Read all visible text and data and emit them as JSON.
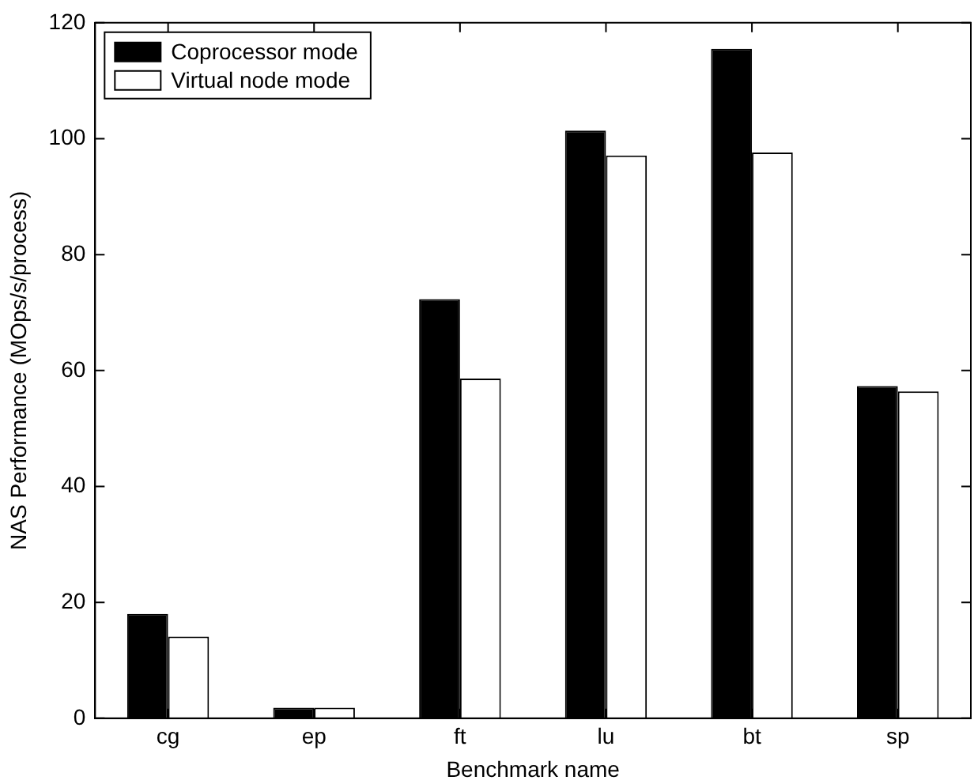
{
  "chart_data": {
    "type": "bar",
    "xlabel": "Benchmark name",
    "ylabel": "NAS Performance (MOps/s/process)",
    "categories": [
      "cg",
      "ep",
      "ft",
      "lu",
      "bt",
      "sp"
    ],
    "series": [
      {
        "name": "Coprocessor mode",
        "color": "#000000",
        "values": [
          18,
          1.8,
          72.3,
          101.4,
          115.5,
          57.3
        ]
      },
      {
        "name": "Virtual node mode",
        "color": "#ffffff",
        "values": [
          14.1,
          1.8,
          58.6,
          97.1,
          97.6,
          56.4
        ]
      }
    ],
    "ylim": [
      0,
      120
    ],
    "yticks": [
      0,
      20,
      40,
      60,
      80,
      100,
      120
    ],
    "grid": false,
    "legend": "top left"
  }
}
